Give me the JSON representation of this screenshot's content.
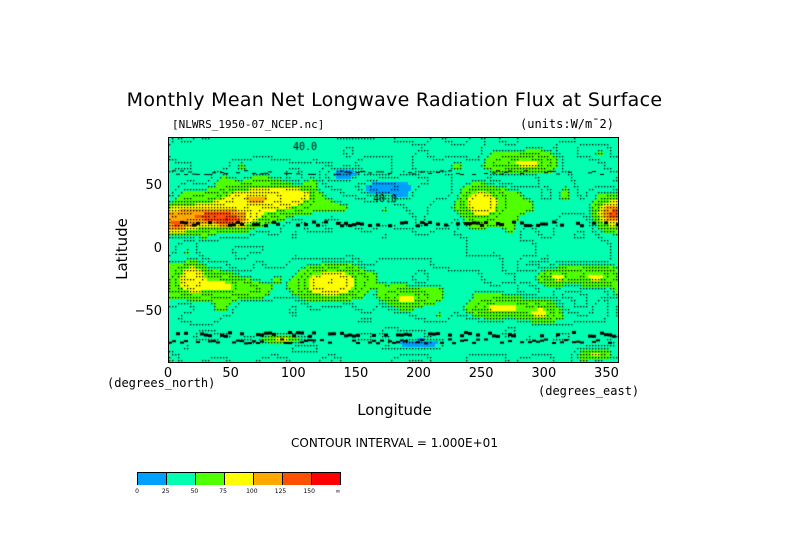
{
  "chart_data": {
    "type": "heatmap",
    "subtype": "filled-contour-map",
    "title": "Monthly Mean Net Longwave Radiation Flux at Surface",
    "source_file_label": "[NLWRS_1950-07_NCEP.nc]",
    "units_label": "(units:W/m¯2)",
    "xlabel": "Longitude",
    "ylabel": "Latitude",
    "x_units": "(degrees_east)",
    "y_units": "(degrees_north)",
    "xlim": [
      0,
      360
    ],
    "ylim": [
      -90,
      90
    ],
    "x_ticks": [
      0,
      50,
      100,
      150,
      200,
      250,
      300,
      350
    ],
    "y_ticks": [
      50,
      0,
      -50
    ],
    "x_tick_labels": [
      "0",
      "50",
      "100",
      "150",
      "200",
      "250",
      "300",
      "350"
    ],
    "y_tick_labels": [
      "50",
      "0",
      "−50"
    ],
    "contour_interval_text": "CONTOUR INTERVAL =  1.000E+01",
    "contour_interval": 10,
    "inline_contour_labels": [
      "40.0",
      "40.0"
    ],
    "colorbar": {
      "levels": [
        "0",
        "25",
        "50",
        "75",
        "100",
        "125",
        "150",
        "∞"
      ],
      "colors": [
        "#00a0ff",
        "#00ffb0",
        "#50ff00",
        "#ffff00",
        "#ffa800",
        "#ff5000",
        "#ff0000"
      ]
    },
    "background_level_value": 40,
    "features": [
      {
        "name": "n-africa-arabia-max",
        "lon": 30,
        "lat": 28,
        "rlon": 45,
        "rlat": 10,
        "value": 130
      },
      {
        "name": "sahara-core",
        "lon": 45,
        "lat": 26,
        "rlon": 12,
        "rlat": 5,
        "value": 155
      },
      {
        "name": "w-sahara",
        "lon": 5,
        "lat": 22,
        "rlon": 12,
        "rlat": 8,
        "value": 130
      },
      {
        "name": "central-asia",
        "lon": 70,
        "lat": 42,
        "rlon": 35,
        "rlat": 10,
        "value": 105
      },
      {
        "name": "mongolia",
        "lon": 100,
        "lat": 45,
        "rlon": 18,
        "rlat": 7,
        "value": 90
      },
      {
        "name": "s-africa",
        "lon": 18,
        "lat": -22,
        "rlon": 10,
        "rlat": 12,
        "value": 110
      },
      {
        "name": "s-africa-halo",
        "lon": 35,
        "lat": -28,
        "rlon": 35,
        "rlat": 10,
        "value": 80
      },
      {
        "name": "australia",
        "lon": 130,
        "lat": -25,
        "rlon": 18,
        "rlat": 10,
        "value": 110
      },
      {
        "name": "australia-halo",
        "lon": 130,
        "lat": -25,
        "rlon": 25,
        "rlat": 14,
        "value": 80
      },
      {
        "name": "s-pacific-yellow",
        "lon": 190,
        "lat": -38,
        "rlon": 18,
        "rlat": 8,
        "value": 80
      },
      {
        "name": "s-pacific-east",
        "lon": 265,
        "lat": -45,
        "rlon": 30,
        "rlat": 8,
        "value": 80
      },
      {
        "name": "s-america-south",
        "lon": 295,
        "lat": -50,
        "rlon": 15,
        "rlat": 8,
        "value": 80
      },
      {
        "name": "s-atlantic",
        "lon": 340,
        "lat": -20,
        "rlon": 20,
        "rlat": 8,
        "value": 80
      },
      {
        "name": "s-atlantic-2",
        "lon": 310,
        "lat": -20,
        "rlon": 12,
        "rlat": 7,
        "value": 80
      },
      {
        "name": "n-america-west",
        "lon": 250,
        "lat": 38,
        "rlon": 12,
        "rlat": 10,
        "value": 110
      },
      {
        "name": "n-america-halo",
        "lon": 250,
        "lat": 38,
        "rlon": 18,
        "rlat": 14,
        "value": 80
      },
      {
        "name": "canada",
        "lon": 285,
        "lat": 70,
        "rlon": 25,
        "rlat": 7,
        "value": 80
      },
      {
        "name": "mexico",
        "lon": 355,
        "lat": 30,
        "rlon": 12,
        "rlat": 10,
        "value": 135
      },
      {
        "name": "n-pacific-blue",
        "lon": 170,
        "lat": 50,
        "rlon": 22,
        "rlat": 8,
        "value": 15
      },
      {
        "name": "n-pacific-blue-2",
        "lon": 140,
        "lat": 62,
        "rlon": 12,
        "rlat": 4,
        "value": 15
      },
      {
        "name": "tropic-cyan",
        "lon": 150,
        "lat": 5,
        "rlon": 100,
        "rlat": 12,
        "value": 30
      },
      {
        "name": "tropic-cyan-atl",
        "lon": 330,
        "lat": 0,
        "rlon": 25,
        "rlat": 10,
        "value": 30
      },
      {
        "name": "arctic-cyan",
        "lon": 100,
        "lat": 82,
        "rlon": 120,
        "rlat": 8,
        "value": 30
      },
      {
        "name": "southern-ocean-cyan",
        "lon": 180,
        "lat": -62,
        "rlon": 200,
        "rlat": 6,
        "value": 30
      },
      {
        "name": "antarctic-cyan",
        "lon": 180,
        "lat": -78,
        "rlon": 200,
        "rlat": 6,
        "value": 30
      },
      {
        "name": "antarctic-blue",
        "lon": 200,
        "lat": -73,
        "rlon": 20,
        "rlat": 3,
        "value": 15
      },
      {
        "name": "antarctic-yellow",
        "lon": 90,
        "lat": -70,
        "rlon": 15,
        "rlat": 3,
        "value": 80
      },
      {
        "name": "antarctic-yellow-2",
        "lon": 340,
        "lat": -82,
        "rlon": 12,
        "rlat": 4,
        "value": 80
      }
    ]
  }
}
